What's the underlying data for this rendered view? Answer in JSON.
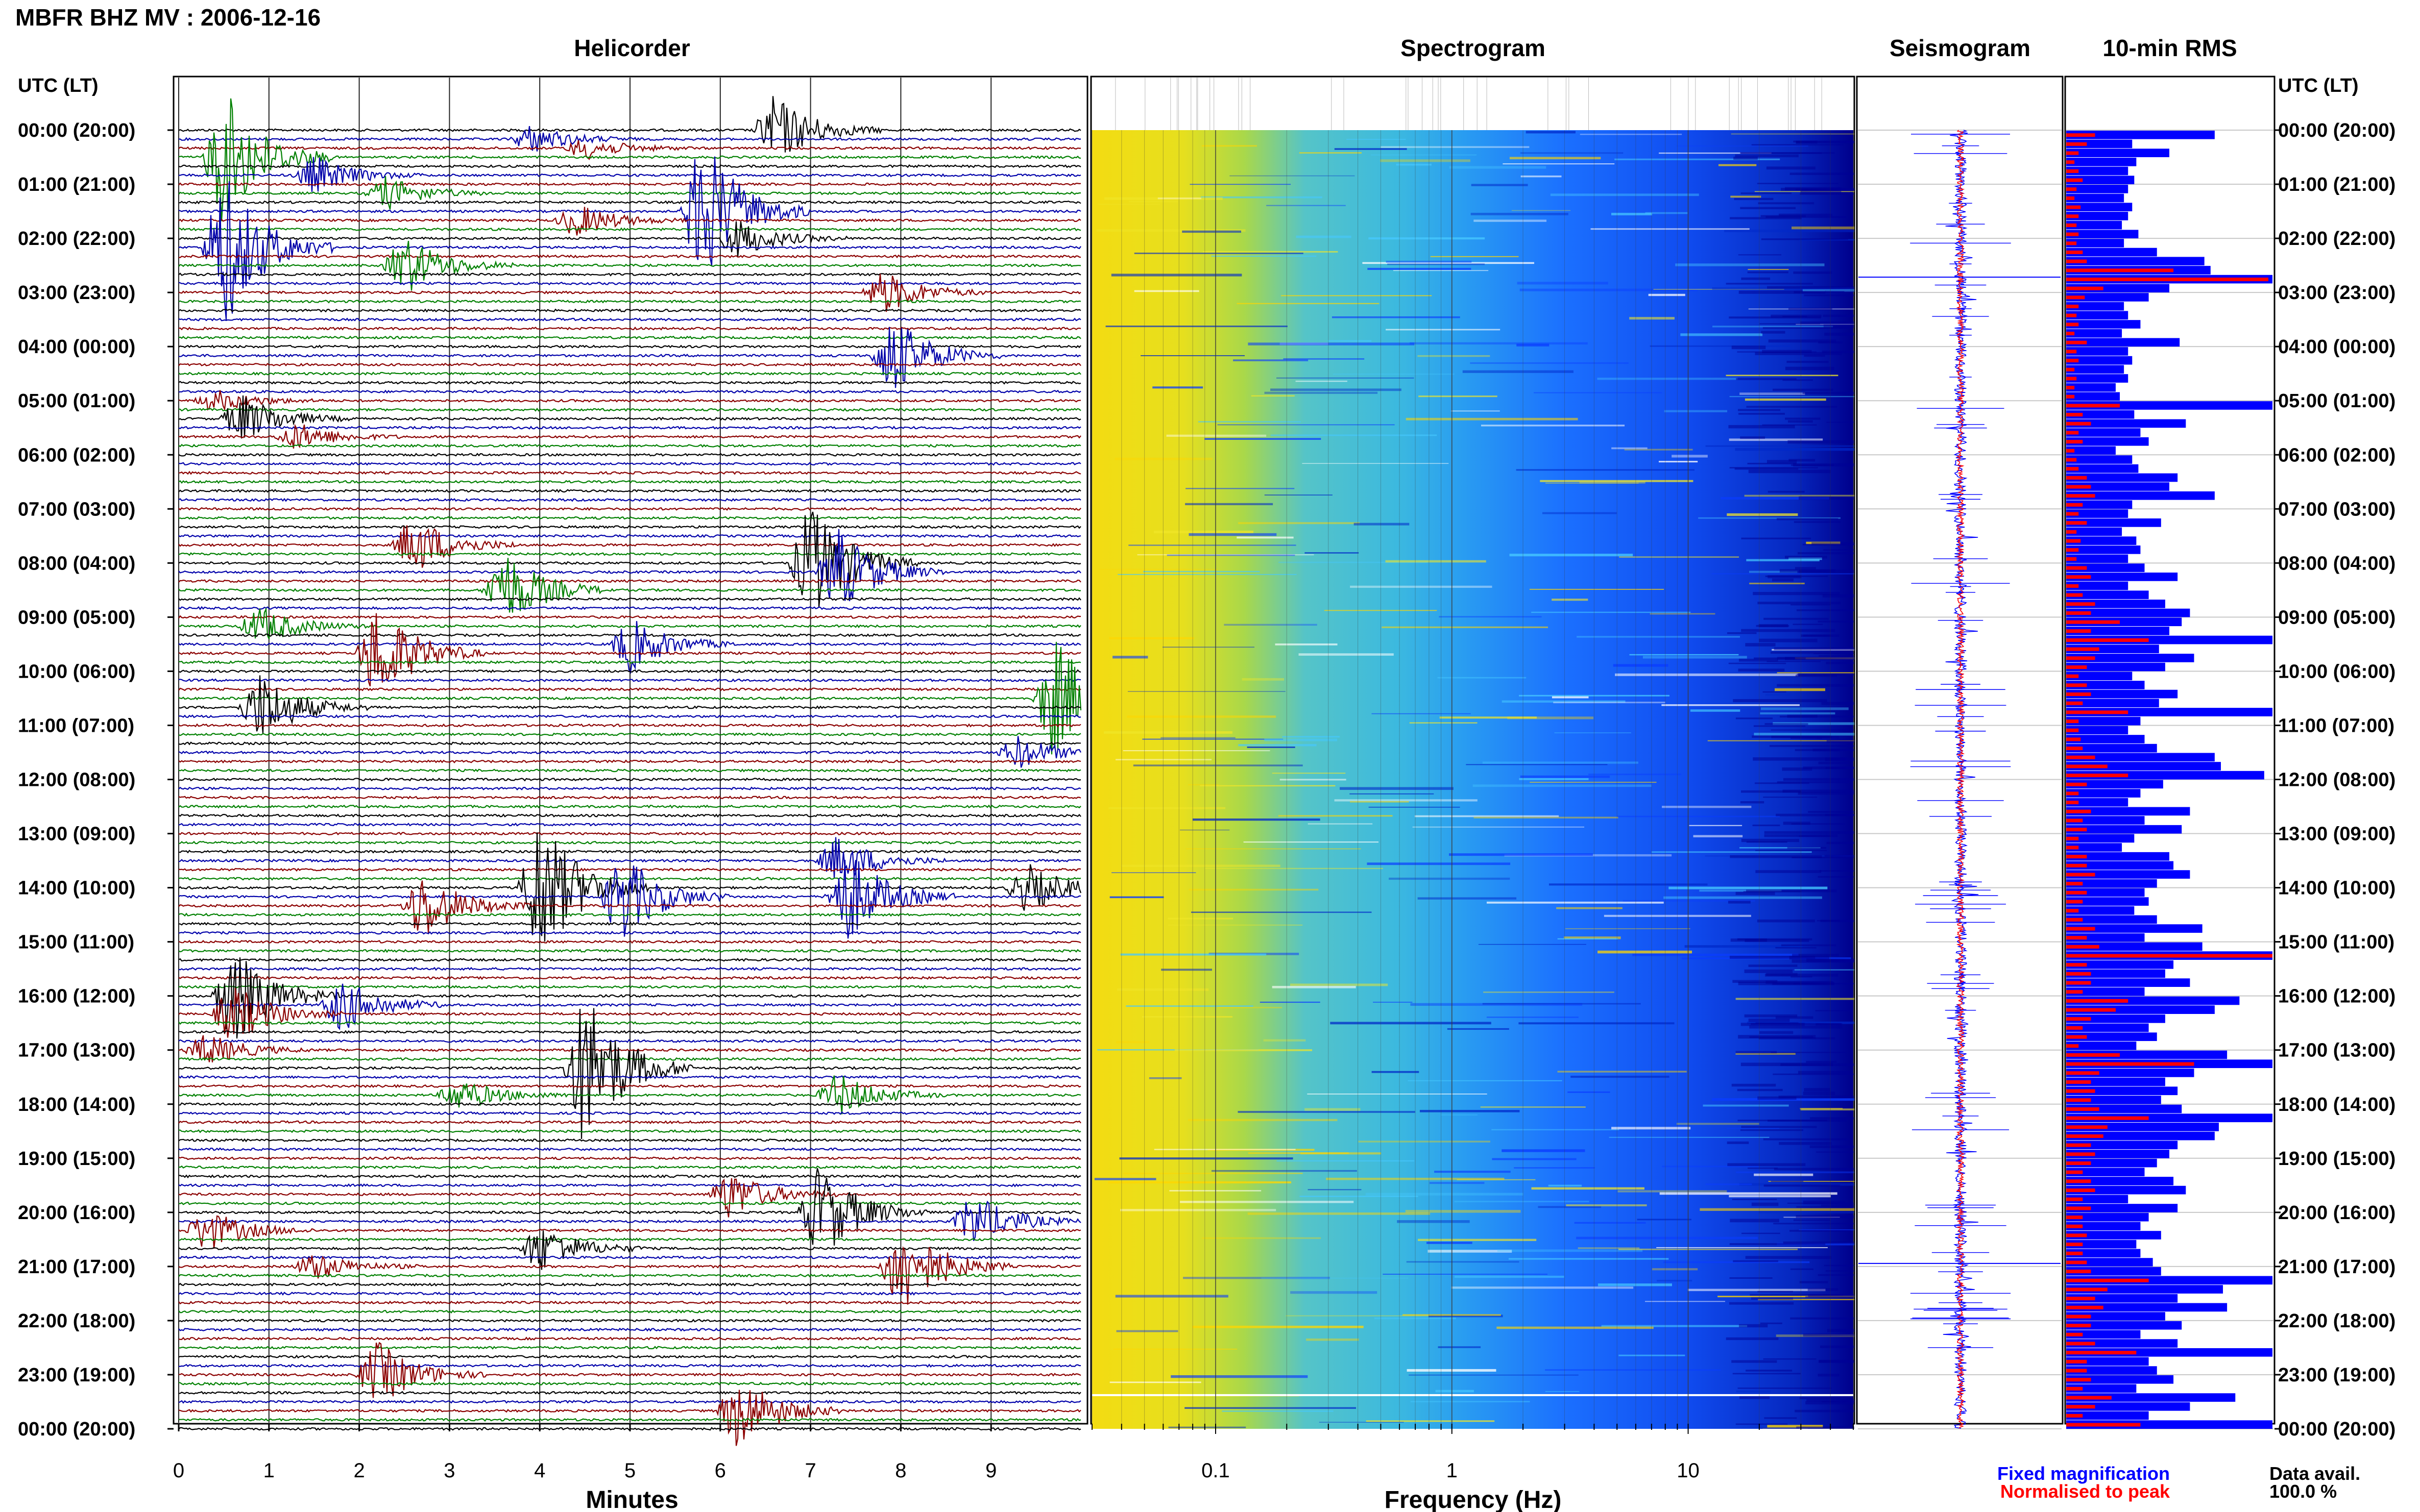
{
  "header": {
    "title": "MBFR BHZ MV : 2006-12-16"
  },
  "panels": {
    "helicorder": "Helicorder",
    "spectrogram": "Spectrogram",
    "seismogram": "Seismogram",
    "rms": "10-min RMS"
  },
  "axes": {
    "time_header": "UTC (LT)",
    "time_labels": [
      "00:00 (20:00)",
      "01:00 (21:00)",
      "02:00 (22:00)",
      "03:00 (23:00)",
      "04:00 (00:00)",
      "05:00 (01:00)",
      "06:00 (02:00)",
      "07:00 (03:00)",
      "08:00 (04:00)",
      "09:00 (05:00)",
      "10:00 (06:00)",
      "11:00 (07:00)",
      "12:00 (08:00)",
      "13:00 (09:00)",
      "14:00 (10:00)",
      "15:00 (11:00)",
      "16:00 (12:00)",
      "17:00 (13:00)",
      "18:00 (14:00)",
      "19:00 (15:00)",
      "20:00 (16:00)",
      "21:00 (17:00)",
      "22:00 (18:00)",
      "23:00 (19:00)",
      "00:00 (20:00)"
    ],
    "minutes_label": "Minutes",
    "minutes_ticks": [
      "0",
      "1",
      "2",
      "3",
      "4",
      "5",
      "6",
      "7",
      "8",
      "9"
    ],
    "frequency_label": "Frequency (Hz)",
    "frequency_ticks": [
      "0.1",
      "1",
      "10"
    ]
  },
  "legend": {
    "fixed": "Fixed magnification",
    "normalised": "Normalised to peak",
    "fixed_color": "#0000ff",
    "normalised_color": "#ff0000"
  },
  "data_avail": {
    "label": "Data avail.",
    "value": "100.0 %"
  },
  "colors": {
    "trace_cycle": [
      "#000000",
      "#0000aa",
      "#8b0000",
      "#008000"
    ],
    "rms_fixed": "#0000ff",
    "rms_norm": "#ff0000"
  },
  "chart_data": [
    {
      "type": "line",
      "panel": "helicorder",
      "x": {
        "label": "Minutes",
        "range": [
          0,
          10
        ]
      },
      "y": {
        "label": "UTC (LT)",
        "range": [
          "00:00",
          "24:00"
        ]
      },
      "rows": 144,
      "events": [
        {
          "time": "00:00",
          "minute": 6.6,
          "amp": 1.3
        },
        {
          "time": "00:10",
          "minute": 3.9,
          "amp": 0.5
        },
        {
          "time": "00:20",
          "minute": 4.5,
          "amp": 0.4
        },
        {
          "time": "00:30",
          "minute": 0.5,
          "amp": 2.6
        },
        {
          "time": "00:50",
          "minute": 1.5,
          "amp": 0.7
        },
        {
          "time": "01:10",
          "minute": 2.3,
          "amp": 0.6
        },
        {
          "time": "01:30",
          "minute": 5.8,
          "amp": 2.8
        },
        {
          "time": "01:40",
          "minute": 4.4,
          "amp": 0.6
        },
        {
          "time": "02:00",
          "minute": 6.2,
          "amp": 0.7
        },
        {
          "time": "02:10",
          "minute": 0.5,
          "amp": 3.0
        },
        {
          "time": "02:30",
          "minute": 2.5,
          "amp": 1.1
        },
        {
          "time": "03:00",
          "minute": 7.8,
          "amp": 0.8
        },
        {
          "time": "04:10",
          "minute": 7.9,
          "amp": 1.5
        },
        {
          "time": "05:00",
          "minute": 0.4,
          "amp": 0.4
        },
        {
          "time": "05:20",
          "minute": 0.7,
          "amp": 0.9
        },
        {
          "time": "05:40",
          "minute": 1.3,
          "amp": 0.5
        },
        {
          "time": "07:40",
          "minute": 2.6,
          "amp": 1.1
        },
        {
          "time": "08:00",
          "minute": 7.0,
          "amp": 2.2
        },
        {
          "time": "08:10",
          "minute": 7.3,
          "amp": 1.6
        },
        {
          "time": "08:30",
          "minute": 3.6,
          "amp": 1.5
        },
        {
          "time": "09:10",
          "minute": 0.9,
          "amp": 0.7
        },
        {
          "time": "09:30",
          "minute": 5.0,
          "amp": 1.0
        },
        {
          "time": "09:40",
          "minute": 2.2,
          "amp": 1.9
        },
        {
          "time": "10:30",
          "minute": 9.7,
          "amp": 2.3
        },
        {
          "time": "10:40",
          "minute": 0.9,
          "amp": 1.3
        },
        {
          "time": "11:30",
          "minute": 9.3,
          "amp": 0.6
        },
        {
          "time": "13:30",
          "minute": 7.3,
          "amp": 0.9
        },
        {
          "time": "14:00",
          "minute": 4.0,
          "amp": 2.8
        },
        {
          "time": "14:10",
          "minute": 7.4,
          "amp": 1.8
        },
        {
          "time": "14:10",
          "minute": 4.9,
          "amp": 1.7
        },
        {
          "time": "14:00",
          "minute": 9.4,
          "amp": 0.9
        },
        {
          "time": "14:20",
          "minute": 2.7,
          "amp": 1.3
        },
        {
          "time": "16:00",
          "minute": 0.6,
          "amp": 1.8
        },
        {
          "time": "16:10",
          "minute": 1.8,
          "amp": 1.0
        },
        {
          "time": "16:20",
          "minute": 0.6,
          "amp": 1.1
        },
        {
          "time": "17:00",
          "minute": 0.3,
          "amp": 0.6
        },
        {
          "time": "17:20",
          "minute": 4.5,
          "amp": 3.0
        },
        {
          "time": "17:50",
          "minute": 3.1,
          "amp": 0.6
        },
        {
          "time": "17:50",
          "minute": 7.3,
          "amp": 0.8
        },
        {
          "time": "19:40",
          "minute": 6.1,
          "amp": 0.9
        },
        {
          "time": "20:00",
          "minute": 7.1,
          "amp": 1.8
        },
        {
          "time": "20:10",
          "minute": 8.8,
          "amp": 1.0
        },
        {
          "time": "20:20",
          "minute": 0.3,
          "amp": 0.8
        },
        {
          "time": "20:40",
          "minute": 4.0,
          "amp": 0.9
        },
        {
          "time": "21:00",
          "minute": 8.0,
          "amp": 1.8
        },
        {
          "time": "21:00",
          "minute": 1.5,
          "amp": 0.5
        },
        {
          "time": "23:00",
          "minute": 2.2,
          "amp": 1.2
        },
        {
          "time": "23:40",
          "minute": 6.2,
          "amp": 1.4
        }
      ]
    },
    {
      "type": "heatmap",
      "panel": "spectrogram",
      "x": {
        "label": "Frequency (Hz)",
        "scale": "log",
        "range": [
          0.03,
          50
        ]
      },
      "y": {
        "label": "UTC (LT)",
        "range": [
          "00:00",
          "24:00"
        ]
      },
      "colormap": [
        "#f5dc00",
        "#c8e632",
        "#2ab4e6",
        "#1e64ff",
        "#0000a0"
      ]
    },
    {
      "type": "line",
      "panel": "seismogram",
      "series": [
        {
          "name": "Fixed magnification",
          "color": "#0000ff"
        },
        {
          "name": "Normalised to peak",
          "color": "#ff0000"
        }
      ]
    },
    {
      "type": "bar",
      "panel": "rms",
      "series": [
        {
          "name": "Fixed magnification",
          "color": "#0000ff",
          "values": [
            0.72,
            0.32,
            0.5,
            0.34,
            0.3,
            0.33,
            0.3,
            0.28,
            0.32,
            0.3,
            0.27,
            0.35,
            0.28,
            0.44,
            0.67,
            0.7,
            1.0,
            0.5,
            0.4,
            0.28,
            0.3,
            0.36,
            0.27,
            0.55,
            0.3,
            0.32,
            0.28,
            0.3,
            0.24,
            0.26,
            1.0,
            0.33,
            0.58,
            0.36,
            0.4,
            0.24,
            0.32,
            0.35,
            0.54,
            0.5,
            0.72,
            0.32,
            0.3,
            0.46,
            0.27,
            0.34,
            0.36,
            0.3,
            0.38,
            0.54,
            0.3,
            0.4,
            0.48,
            0.6,
            0.56,
            0.5,
            1.0,
            0.45,
            0.62,
            0.48,
            0.32,
            0.38,
            0.54,
            0.45,
            1.0,
            0.36,
            0.3,
            0.38,
            0.44,
            0.72,
            0.75,
            0.96,
            0.47,
            0.36,
            0.3,
            0.6,
            0.38,
            0.56,
            0.33,
            0.27,
            0.5,
            0.52,
            0.6,
            0.44,
            0.38,
            0.4,
            0.33,
            0.44,
            0.66,
            0.38,
            0.66,
            1.0,
            0.52,
            0.48,
            0.6,
            0.38,
            0.84,
            0.72,
            0.48,
            0.4,
            0.44,
            0.34,
            0.78,
            1.0,
            0.62,
            0.48,
            0.54,
            0.46,
            0.56,
            1.0,
            0.74,
            0.72,
            0.54,
            0.5,
            0.44,
            0.38,
            0.52,
            0.58,
            0.3,
            0.54,
            0.4,
            0.36,
            0.46,
            0.34,
            0.36,
            0.42,
            0.46,
            1.0,
            0.76,
            0.54,
            0.78,
            0.48,
            0.56,
            0.36,
            0.54,
            1.0,
            0.4,
            0.44,
            0.52,
            0.34,
            0.82,
            0.6,
            0.4,
            1.0
          ]
        },
        {
          "name": "Normalised to peak",
          "color": "#ff0000",
          "values": [
            0.14,
            0.1,
            0.06,
            0.04,
            0.06,
            0.08,
            0.05,
            0.04,
            0.07,
            0.06,
            0.05,
            0.06,
            0.05,
            0.08,
            0.1,
            0.52,
            0.98,
            0.18,
            0.09,
            0.06,
            0.05,
            0.06,
            0.04,
            0.1,
            0.05,
            0.06,
            0.04,
            0.05,
            0.04,
            0.04,
            0.26,
            0.08,
            0.12,
            0.06,
            0.08,
            0.04,
            0.05,
            0.06,
            0.1,
            0.12,
            0.14,
            0.08,
            0.06,
            0.1,
            0.05,
            0.07,
            0.06,
            0.05,
            0.1,
            0.12,
            0.06,
            0.08,
            0.14,
            0.12,
            0.26,
            0.12,
            0.4,
            0.16,
            0.14,
            0.1,
            0.06,
            0.1,
            0.12,
            0.08,
            0.3,
            0.06,
            0.06,
            0.07,
            0.08,
            0.14,
            0.2,
            0.3,
            0.1,
            0.06,
            0.06,
            0.12,
            0.08,
            0.1,
            0.06,
            0.06,
            0.1,
            0.1,
            0.14,
            0.08,
            0.1,
            0.08,
            0.06,
            0.08,
            0.14,
            0.1,
            0.16,
            1.0,
            0.1,
            0.12,
            0.12,
            0.08,
            0.3,
            0.24,
            0.12,
            0.08,
            0.1,
            0.06,
            0.26,
            0.62,
            0.16,
            0.12,
            0.14,
            0.12,
            0.16,
            0.4,
            0.2,
            0.18,
            0.12,
            0.14,
            0.12,
            0.08,
            0.12,
            0.14,
            0.08,
            0.12,
            0.08,
            0.08,
            0.1,
            0.08,
            0.08,
            0.1,
            0.12,
            0.4,
            0.2,
            0.14,
            0.18,
            0.12,
            0.12,
            0.08,
            0.14,
            0.34,
            0.1,
            0.1,
            0.12,
            0.08,
            0.22,
            0.14,
            0.08,
            0.36
          ]
        }
      ]
    }
  ]
}
